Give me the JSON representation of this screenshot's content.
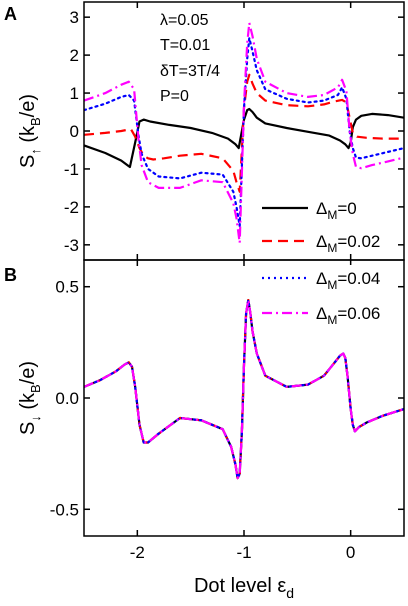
{
  "chart_data": [
    {
      "type": "line",
      "panel_label": "A",
      "ylabel": "S↑ (kB/e)",
      "xlim": [
        -2.5,
        0.5
      ],
      "ylim": [
        -3.4,
        3.4
      ],
      "xticks": [
        "-2",
        "-1",
        "0"
      ],
      "yticks": [
        "-3",
        "-2",
        "-1",
        "0",
        "1",
        "2",
        "3"
      ],
      "annotations": [
        "λ=0.05",
        "T=0.01",
        "δT=3T/4",
        "P=0"
      ],
      "grid": false,
      "series": [
        {
          "name": "ΔM=0",
          "color": "#000000",
          "dash": "solid",
          "x": [
            -2.5,
            -2.3,
            -2.15,
            -2.07,
            -2.02,
            -1.98,
            -1.94,
            -1.88,
            -1.7,
            -1.5,
            -1.3,
            -1.15,
            -1.08,
            -1.05,
            -1.0,
            -0.97,
            -0.95,
            -0.92,
            -0.88,
            -0.8,
            -0.6,
            -0.4,
            -0.2,
            -0.1,
            -0.05,
            -0.02,
            0.0,
            0.02,
            0.05,
            0.1,
            0.2,
            0.35,
            0.5
          ],
          "y": [
            -0.38,
            -0.58,
            -0.78,
            -0.95,
            -0.3,
            0.25,
            0.3,
            0.25,
            0.16,
            0.08,
            -0.05,
            -0.2,
            -0.35,
            -0.45,
            0.3,
            0.55,
            0.58,
            0.5,
            0.35,
            0.2,
            0.08,
            -0.02,
            -0.12,
            -0.25,
            -0.35,
            -0.45,
            -0.3,
            0.1,
            0.3,
            0.4,
            0.45,
            0.42,
            0.35
          ]
        },
        {
          "name": "ΔM=0.02",
          "color": "#ff0000",
          "dash": "long",
          "x": [
            -2.5,
            -2.3,
            -2.15,
            -2.06,
            -2.02,
            -1.98,
            -1.94,
            -1.9,
            -1.85,
            -1.75,
            -1.6,
            -1.4,
            -1.2,
            -1.1,
            -1.07,
            -1.04,
            -1.0,
            -0.97,
            -0.95,
            -0.92,
            -0.88,
            -0.8,
            -0.6,
            -0.4,
            -0.25,
            -0.15,
            -0.08,
            -0.04,
            -0.01,
            0.02,
            0.06,
            0.15,
            0.3,
            0.5
          ],
          "y": [
            -0.1,
            -0.05,
            0.0,
            0.05,
            -0.15,
            -0.45,
            -0.65,
            -0.72,
            -0.75,
            -0.72,
            -0.65,
            -0.6,
            -0.72,
            -1.05,
            -1.35,
            -1.6,
            0.6,
            1.3,
            1.48,
            1.25,
            1.0,
            0.8,
            0.68,
            0.65,
            0.7,
            0.78,
            0.82,
            0.75,
            0.35,
            -0.05,
            -0.15,
            -0.18,
            -0.2,
            -0.2
          ]
        },
        {
          "name": "ΔM=0.04",
          "color": "#0000ff",
          "dash": "dot",
          "x": [
            -2.5,
            -2.3,
            -2.15,
            -2.08,
            -2.03,
            -1.99,
            -1.96,
            -1.9,
            -1.8,
            -1.6,
            -1.4,
            -1.2,
            -1.1,
            -1.07,
            -1.04,
            -1.0,
            -0.97,
            -0.95,
            -0.92,
            -0.88,
            -0.8,
            -0.6,
            -0.4,
            -0.25,
            -0.12,
            -0.08,
            -0.04,
            -0.01,
            0.02,
            0.05,
            0.1,
            0.2,
            0.35,
            0.5
          ],
          "y": [
            0.55,
            0.72,
            0.9,
            0.95,
            0.8,
            -0.1,
            -0.6,
            -1.0,
            -1.2,
            -1.25,
            -1.1,
            -1.15,
            -1.6,
            -2.0,
            -2.5,
            0.6,
            1.9,
            2.45,
            2.1,
            1.6,
            1.1,
            0.85,
            0.75,
            0.8,
            0.95,
            1.15,
            0.85,
            0.0,
            -0.45,
            -0.7,
            -0.72,
            -0.65,
            -0.55,
            -0.45
          ]
        },
        {
          "name": "ΔM=0.06",
          "color": "#ff00ff",
          "dash": "dashdot",
          "x": [
            -2.5,
            -2.3,
            -2.15,
            -2.08,
            -2.03,
            -1.99,
            -1.96,
            -1.9,
            -1.8,
            -1.6,
            -1.4,
            -1.2,
            -1.1,
            -1.07,
            -1.04,
            -1.0,
            -0.97,
            -0.95,
            -0.92,
            -0.88,
            -0.8,
            -0.6,
            -0.4,
            -0.25,
            -0.12,
            -0.08,
            -0.04,
            -0.01,
            0.02,
            0.05,
            0.1,
            0.2,
            0.35,
            0.5
          ],
          "y": [
            0.8,
            1.0,
            1.22,
            1.3,
            1.1,
            -0.2,
            -0.9,
            -1.35,
            -1.5,
            -1.5,
            -1.3,
            -1.35,
            -1.9,
            -2.3,
            -2.95,
            0.7,
            2.3,
            2.85,
            2.5,
            1.9,
            1.3,
            1.0,
            0.9,
            0.95,
            1.15,
            1.35,
            1.05,
            0.0,
            -0.6,
            -0.95,
            -0.98,
            -0.9,
            -0.8,
            -0.7
          ]
        }
      ]
    },
    {
      "type": "line",
      "panel_label": "B",
      "xlabel": "Dot level εd",
      "ylabel": "S↓ (kB/e)",
      "xlim": [
        -2.5,
        0.5
      ],
      "ylim": [
        -0.62,
        0.62
      ],
      "xticks": [
        "-2",
        "-1",
        "0"
      ],
      "yticks": [
        "-0.5",
        "0.0",
        "0.5"
      ],
      "grid": false,
      "note": "All four ΔM curves overlap in panel B.",
      "series": [
        {
          "name": "ΔM=0",
          "color": "#000000",
          "dash": "solid",
          "x": [
            -2.5,
            -2.35,
            -2.2,
            -2.12,
            -2.08,
            -2.05,
            -2.02,
            -1.98,
            -1.94,
            -1.9,
            -1.8,
            -1.6,
            -1.4,
            -1.2,
            -1.12,
            -1.08,
            -1.06,
            -1.04,
            -1.02,
            -1.0,
            -0.98,
            -0.96,
            -0.94,
            -0.92,
            -0.88,
            -0.8,
            -0.6,
            -0.4,
            -0.25,
            -0.15,
            -0.1,
            -0.07,
            -0.05,
            -0.03,
            0.0,
            0.02,
            0.04,
            0.08,
            0.15,
            0.3,
            0.5
          ],
          "y": [
            0.05,
            0.08,
            0.12,
            0.15,
            0.16,
            0.14,
            0.05,
            -0.12,
            -0.2,
            -0.2,
            -0.16,
            -0.09,
            -0.1,
            -0.14,
            -0.22,
            -0.3,
            -0.36,
            -0.34,
            -0.15,
            0.15,
            0.38,
            0.44,
            0.38,
            0.3,
            0.2,
            0.1,
            0.05,
            0.06,
            0.1,
            0.16,
            0.19,
            0.2,
            0.18,
            0.1,
            -0.05,
            -0.12,
            -0.15,
            -0.13,
            -0.11,
            -0.08,
            -0.05
          ]
        },
        {
          "name": "ΔM=0.02",
          "color": "#ff0000",
          "dash": "long",
          "x": [
            -2.5,
            -2.35,
            -2.2,
            -2.12,
            -2.08,
            -2.05,
            -2.02,
            -1.98,
            -1.94,
            -1.9,
            -1.8,
            -1.6,
            -1.4,
            -1.2,
            -1.12,
            -1.08,
            -1.06,
            -1.04,
            -1.02,
            -1.0,
            -0.98,
            -0.96,
            -0.94,
            -0.92,
            -0.88,
            -0.8,
            -0.6,
            -0.4,
            -0.25,
            -0.15,
            -0.1,
            -0.07,
            -0.05,
            -0.03,
            0.0,
            0.02,
            0.04,
            0.08,
            0.15,
            0.3,
            0.5
          ],
          "y": [
            0.05,
            0.08,
            0.12,
            0.15,
            0.16,
            0.14,
            0.05,
            -0.12,
            -0.2,
            -0.2,
            -0.16,
            -0.09,
            -0.1,
            -0.14,
            -0.22,
            -0.3,
            -0.36,
            -0.34,
            -0.15,
            0.15,
            0.38,
            0.44,
            0.38,
            0.3,
            0.2,
            0.1,
            0.05,
            0.06,
            0.1,
            0.16,
            0.19,
            0.2,
            0.18,
            0.1,
            -0.05,
            -0.12,
            -0.15,
            -0.13,
            -0.11,
            -0.08,
            -0.05
          ]
        },
        {
          "name": "ΔM=0.04",
          "color": "#0000ff",
          "dash": "dot",
          "x": [
            -2.5,
            -2.35,
            -2.2,
            -2.12,
            -2.08,
            -2.05,
            -2.02,
            -1.98,
            -1.94,
            -1.9,
            -1.8,
            -1.6,
            -1.4,
            -1.2,
            -1.12,
            -1.08,
            -1.06,
            -1.04,
            -1.02,
            -1.0,
            -0.98,
            -0.96,
            -0.94,
            -0.92,
            -0.88,
            -0.8,
            -0.6,
            -0.4,
            -0.25,
            -0.15,
            -0.1,
            -0.07,
            -0.05,
            -0.03,
            0.0,
            0.02,
            0.04,
            0.08,
            0.15,
            0.3,
            0.5
          ],
          "y": [
            0.05,
            0.08,
            0.12,
            0.15,
            0.16,
            0.14,
            0.05,
            -0.12,
            -0.2,
            -0.2,
            -0.16,
            -0.09,
            -0.1,
            -0.14,
            -0.22,
            -0.3,
            -0.36,
            -0.34,
            -0.15,
            0.15,
            0.38,
            0.44,
            0.38,
            0.3,
            0.2,
            0.1,
            0.05,
            0.06,
            0.1,
            0.16,
            0.19,
            0.2,
            0.18,
            0.1,
            -0.05,
            -0.12,
            -0.15,
            -0.13,
            -0.11,
            -0.08,
            -0.05
          ]
        },
        {
          "name": "ΔM=0.06",
          "color": "#ff00ff",
          "dash": "dashdot",
          "x": [
            -2.5,
            -2.35,
            -2.2,
            -2.12,
            -2.08,
            -2.05,
            -2.02,
            -1.98,
            -1.94,
            -1.9,
            -1.8,
            -1.6,
            -1.4,
            -1.2,
            -1.12,
            -1.08,
            -1.06,
            -1.04,
            -1.02,
            -1.0,
            -0.98,
            -0.96,
            -0.94,
            -0.92,
            -0.88,
            -0.8,
            -0.6,
            -0.4,
            -0.25,
            -0.15,
            -0.1,
            -0.07,
            -0.05,
            -0.03,
            0.0,
            0.02,
            0.04,
            0.08,
            0.15,
            0.3,
            0.5
          ],
          "y": [
            0.05,
            0.08,
            0.12,
            0.15,
            0.16,
            0.14,
            0.05,
            -0.12,
            -0.2,
            -0.2,
            -0.16,
            -0.09,
            -0.1,
            -0.14,
            -0.22,
            -0.3,
            -0.36,
            -0.34,
            -0.15,
            0.15,
            0.38,
            0.44,
            0.38,
            0.3,
            0.2,
            0.1,
            0.05,
            0.06,
            0.1,
            0.16,
            0.19,
            0.2,
            0.18,
            0.1,
            -0.05,
            -0.12,
            -0.15,
            -0.13,
            -0.11,
            -0.08,
            -0.05
          ]
        }
      ]
    }
  ],
  "legend": [
    {
      "label": "ΔM=0",
      "base": "Δ",
      "sub": "M",
      "value": "=0",
      "color": "#000000",
      "dash": "solid"
    },
    {
      "label": "ΔM=0.02",
      "base": "Δ",
      "sub": "M",
      "value": "=0.02",
      "color": "#ff0000",
      "dash": "long"
    },
    {
      "label": "ΔM=0.04",
      "base": "Δ",
      "sub": "M",
      "value": "=0.04",
      "color": "#0000ff",
      "dash": "dot"
    },
    {
      "label": "ΔM=0.06",
      "base": "Δ",
      "sub": "M",
      "value": "=0.06",
      "color": "#ff00ff",
      "dash": "dashdot"
    }
  ],
  "ylabel_A": {
    "base": "S",
    "sub": "↑",
    "rest": " (k",
    "sub2": "B",
    "end": "/e)"
  },
  "ylabel_B": {
    "base": "S",
    "sub": "↓",
    "rest": " (k",
    "sub2": "B",
    "end": "/e)"
  },
  "xlabel_parts": {
    "base": "Dot level ε",
    "sub": "d"
  }
}
